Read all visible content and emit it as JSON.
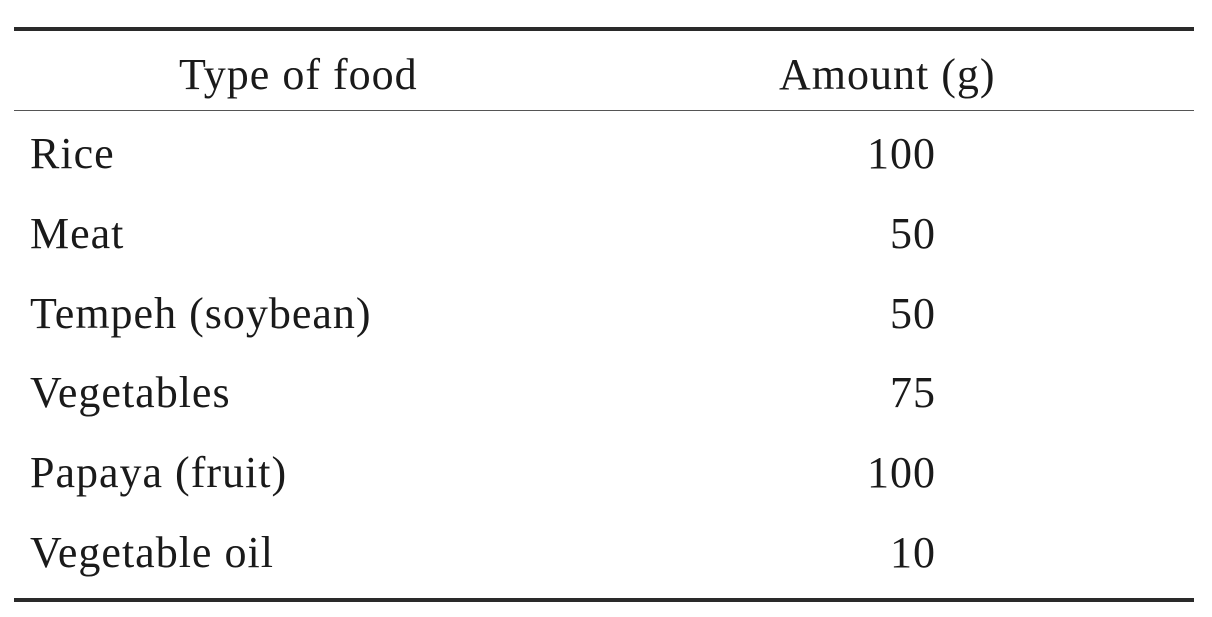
{
  "table": {
    "headers": {
      "food": "Type of food",
      "amount": "Amount (g)"
    },
    "rows": [
      {
        "food": "Rice",
        "amount": "100"
      },
      {
        "food": "Meat",
        "amount": "50"
      },
      {
        "food": "Tempeh (soybean)",
        "amount": "50"
      },
      {
        "food": "Vegetables",
        "amount": "75"
      },
      {
        "food": "Papaya (fruit)",
        "amount": "100"
      },
      {
        "food": "Vegetable oil",
        "amount": "10"
      }
    ]
  }
}
